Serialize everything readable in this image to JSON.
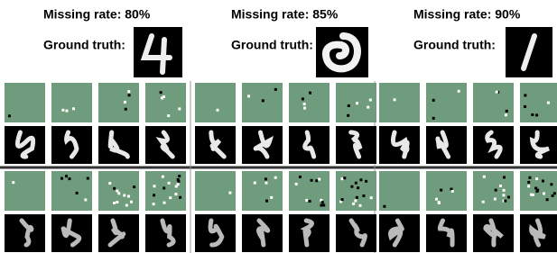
{
  "panels": [
    {
      "missing_rate": "Missing rate:  80%",
      "ground_truth": "Ground truth:"
    },
    {
      "missing_rate": "Missing rate:  85%",
      "ground_truth": "Ground truth:"
    },
    {
      "missing_rate": "Missing rate:  90%",
      "ground_truth": "Ground truth:"
    }
  ]
}
